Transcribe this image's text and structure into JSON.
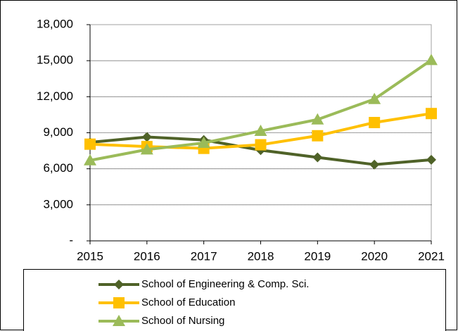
{
  "chart_data": {
    "type": "line",
    "categories": [
      "2015",
      "2016",
      "2017",
      "2018",
      "2019",
      "2020",
      "2021"
    ],
    "series": [
      {
        "name": "School of Engineering & Comp. Sci.",
        "color": "#4f6228",
        "marker": "diamond",
        "values": [
          8200,
          8650,
          8400,
          7550,
          6950,
          6350,
          6750
        ]
      },
      {
        "name": "School of Education",
        "color": "#ffc000",
        "marker": "square",
        "values": [
          8050,
          7850,
          7700,
          8000,
          8750,
          9850,
          10600
        ]
      },
      {
        "name": "School of Nursing",
        "color": "#9bbb59",
        "marker": "triangle",
        "values": [
          6700,
          7600,
          8150,
          9150,
          10100,
          11800,
          15050
        ]
      }
    ],
    "ylim": [
      0,
      18000
    ],
    "yticks": [
      {
        "value": 0,
        "label": "-"
      },
      {
        "value": 3000,
        "label": "3,000"
      },
      {
        "value": 6000,
        "label": "6,000"
      },
      {
        "value": 9000,
        "label": "9,000"
      },
      {
        "value": 12000,
        "label": "12,000"
      },
      {
        "value": 15000,
        "label": "15,000"
      },
      {
        "value": 18000,
        "label": "18,000"
      }
    ],
    "grid": true,
    "legend": "bottom"
  }
}
